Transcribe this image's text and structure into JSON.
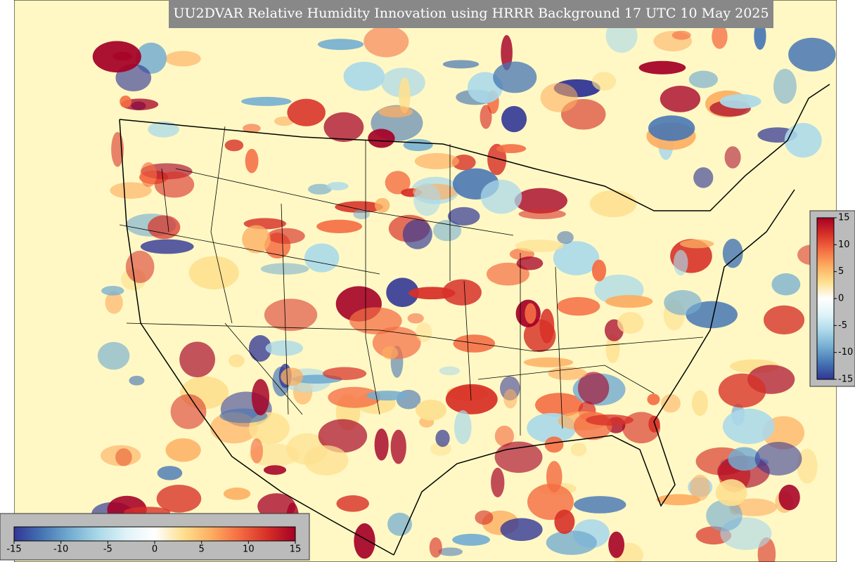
{
  "title": "UU2DVAR Relative Humidity Innovation using HRRR Background 17 UTC 10 May 2025",
  "colormap": [
    "#313695",
    "#4575b4",
    "#74add1",
    "#abd9e9",
    "#e0f3f8",
    "#ffffff",
    "#fee090",
    "#fdae61",
    "#f46d43",
    "#d73027",
    "#a50026"
  ],
  "colorbars": [
    {
      "range": [
        -15,
        15
      ],
      "ticks": [
        -15,
        -10,
        -5,
        0,
        5,
        10,
        15
      ]
    },
    {
      "range": [
        -15,
        15
      ],
      "ticks": [
        -15,
        -10,
        -5,
        0,
        5,
        10,
        15
      ]
    }
  ]
}
